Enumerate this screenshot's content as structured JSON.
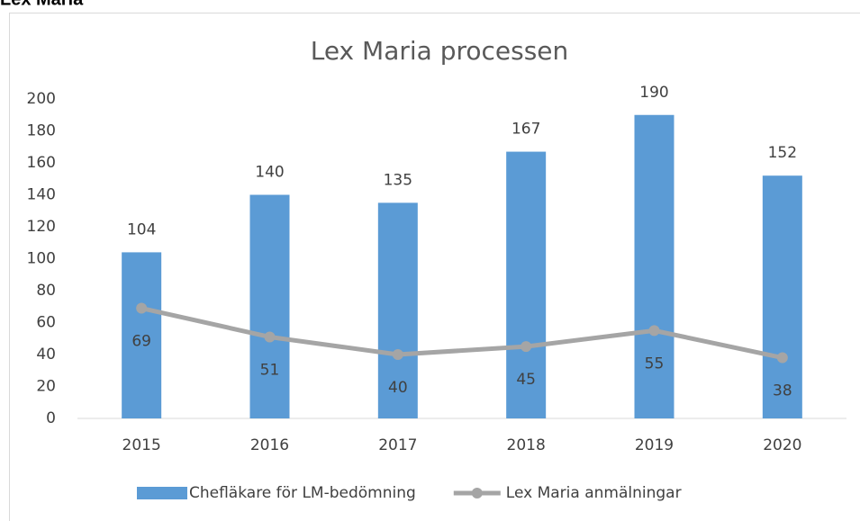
{
  "header": {
    "title": "Lex Maria"
  },
  "chart_data": {
    "type": "bar",
    "title": "Lex Maria processen",
    "categories": [
      "2015",
      "2016",
      "2017",
      "2018",
      "2019",
      "2020"
    ],
    "series": [
      {
        "name": "Chefläkare för LM-bedömning",
        "type": "bar",
        "color": "#5b9bd5",
        "values": [
          104,
          140,
          135,
          167,
          190,
          152
        ]
      },
      {
        "name": "Lex Maria anmälningar",
        "type": "line",
        "color": "#a5a5a5",
        "values": [
          69,
          51,
          40,
          45,
          55,
          38
        ]
      }
    ],
    "ylim": [
      0,
      200
    ],
    "yticks": [
      0,
      20,
      40,
      60,
      80,
      100,
      120,
      140,
      160,
      180,
      200
    ],
    "grid": false,
    "legend": "bottom"
  }
}
